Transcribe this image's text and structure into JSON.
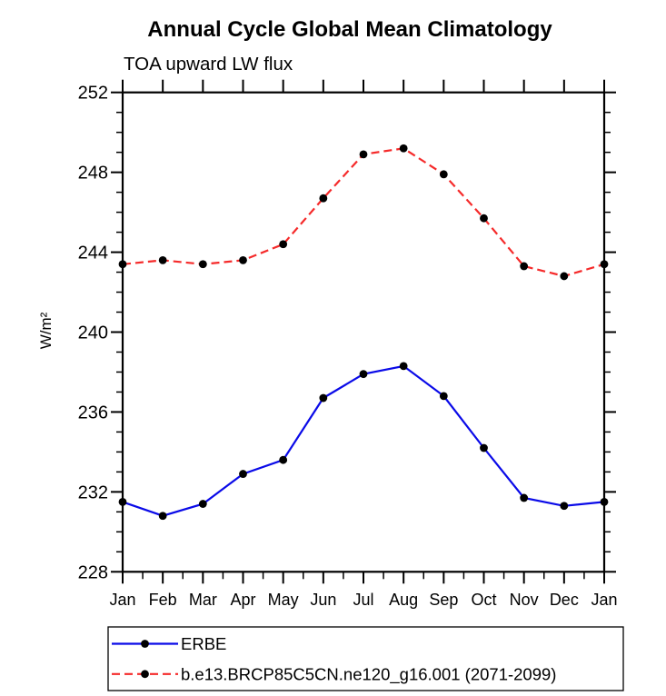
{
  "title": "Annual Cycle Global Mean Climatology",
  "subtitle": "TOA upward LW flux",
  "chart_data": {
    "type": "line",
    "x_categories": [
      "Jan",
      "Feb",
      "Mar",
      "Apr",
      "May",
      "Jun",
      "Jul",
      "Aug",
      "Sep",
      "Oct",
      "Nov",
      "Dec",
      "Jan"
    ],
    "ylabel": "W/m²",
    "ylim": [
      228,
      252
    ],
    "ytick_major": [
      228,
      232,
      236,
      240,
      244,
      248,
      252
    ],
    "ytick_minor_step": 1,
    "grid": false,
    "legend_position": "bottom-left-box",
    "axis_color": "#000000",
    "series": [
      {
        "name": "ERBE",
        "color": "#0a0ae8",
        "line_style": "solid",
        "marker": "filled-circle",
        "marker_color": "#000000",
        "values": [
          231.5,
          230.8,
          231.4,
          232.9,
          233.6,
          236.7,
          237.9,
          238.3,
          236.8,
          234.2,
          231.7,
          231.3,
          231.5
        ]
      },
      {
        "name": "b.e13.BRCP85C5CN.ne120_g16.001 (2071-2099)",
        "color": "#f52a2a",
        "line_style": "dashed",
        "marker": "filled-circle",
        "marker_color": "#000000",
        "values": [
          243.4,
          243.6,
          243.4,
          243.6,
          244.4,
          246.7,
          248.9,
          249.2,
          247.9,
          245.7,
          243.3,
          242.8,
          243.4
        ]
      }
    ]
  }
}
